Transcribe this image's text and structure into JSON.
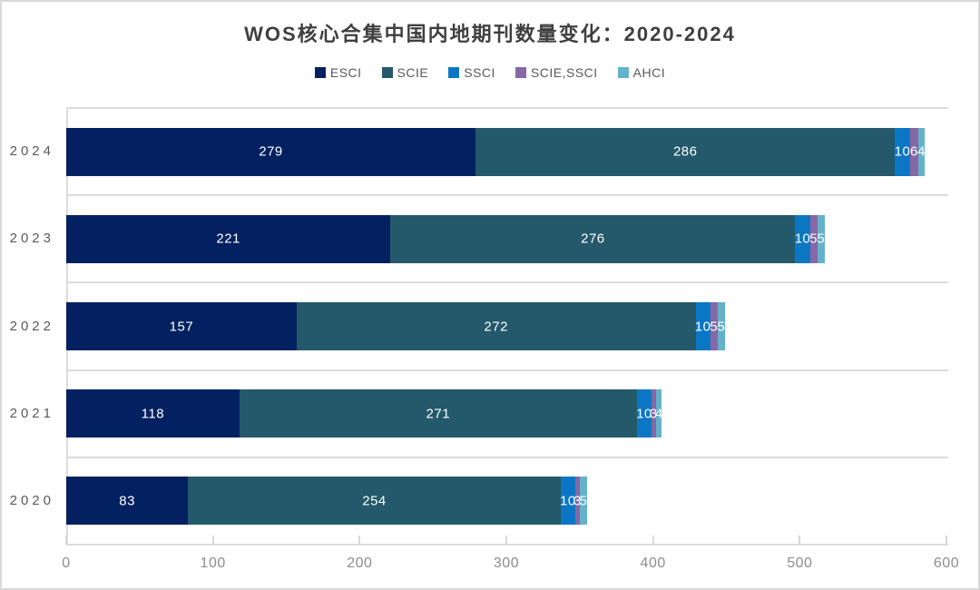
{
  "chart_data": {
    "type": "bar",
    "orientation": "horizontal",
    "stacked": true,
    "title": "WOS核心合集中国内地期刊数量变化：2020-2024",
    "categories": [
      "2024",
      "2023",
      "2022",
      "2021",
      "2020"
    ],
    "series": [
      {
        "name": "ESCI",
        "color": "#032160",
        "values": [
          279,
          221,
          157,
          118,
          83
        ]
      },
      {
        "name": "SCIE",
        "color": "#23596a",
        "values": [
          286,
          276,
          272,
          271,
          254
        ]
      },
      {
        "name": "SSCI",
        "color": "#0b77c4",
        "values": [
          10,
          10,
          10,
          10,
          10
        ]
      },
      {
        "name": "SCIE,SSCI",
        "color": "#8767a6",
        "values": [
          6,
          5,
          5,
          3,
          3
        ]
      },
      {
        "name": "AHCI",
        "color": "#64b2ca",
        "values": [
          4,
          5,
          5,
          4,
          5
        ]
      }
    ],
    "xlabel": "",
    "ylabel": "",
    "xlim": [
      0,
      600
    ],
    "x_ticks": [
      0,
      100,
      200,
      300,
      400,
      500,
      600
    ],
    "legend_position": "top",
    "grid": "category-separator-lines",
    "data_labels": "white-inside-segments",
    "colors": {
      "title_text": "#3f3f3f",
      "legend_text": "#595959",
      "axis_label_text": "#8c8c8c",
      "category_label_text": "#595959",
      "gridline": "#dcdcdc",
      "bar_label_text": "#ffffff",
      "frame_border": "#d9d9d9"
    }
  }
}
